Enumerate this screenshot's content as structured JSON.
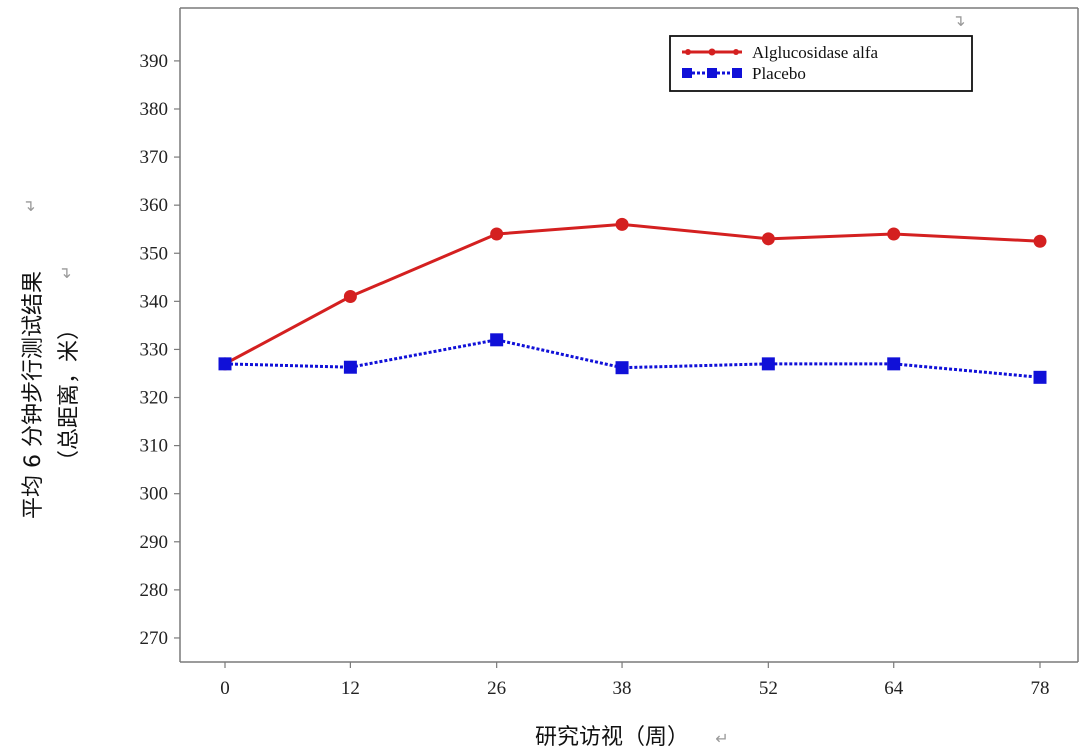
{
  "chart_data": {
    "type": "line",
    "x": [
      0,
      12,
      26,
      38,
      52,
      64,
      78
    ],
    "series": [
      {
        "name": "Alglucosidase alfa",
        "values": [
          327,
          341,
          354,
          356,
          353,
          354,
          352.5
        ],
        "color": "#d42020",
        "marker": "circle",
        "line_style": "solid"
      },
      {
        "name": "Placebo",
        "values": [
          327,
          326.3,
          332,
          326.2,
          327,
          327,
          324.2
        ],
        "color": "#1010d8",
        "marker": "square",
        "line_style": "dotted"
      }
    ],
    "xticks": [
      0,
      12,
      26,
      38,
      52,
      64,
      78
    ],
    "yticks": [
      270,
      280,
      290,
      300,
      310,
      320,
      330,
      340,
      350,
      360,
      370,
      380,
      390
    ],
    "ylim": [
      265,
      401
    ],
    "xlabel": "研究访视（周）",
    "ylabel_lines": [
      "平均 6 分钟步行测试结果",
      "（总距离，米）"
    ],
    "legend_position": "top-right",
    "grid": false,
    "paragraph_mark": "↵"
  }
}
